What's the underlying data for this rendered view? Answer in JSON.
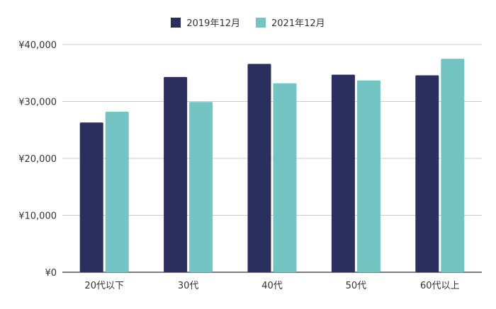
{
  "chart_data": {
    "type": "bar",
    "categories": [
      "20代以下",
      "30代",
      "40代",
      "50代",
      "60代以上"
    ],
    "series": [
      {
        "name": "2019年12月",
        "color": "#2b2f5e",
        "values": [
          26300,
          34300,
          36600,
          34700,
          34600
        ]
      },
      {
        "name": "2021年12月",
        "color": "#74c4c4",
        "values": [
          28200,
          29900,
          33200,
          33700,
          37500
        ]
      }
    ],
    "ylim": [
      0,
      40000
    ],
    "yticks": [
      0,
      10000,
      20000,
      30000,
      40000
    ],
    "ytick_labels": [
      "¥0",
      "¥10,000",
      "¥20,000",
      "¥30,000",
      "¥40,000"
    ],
    "grid": true,
    "legend_position": "top-center"
  }
}
